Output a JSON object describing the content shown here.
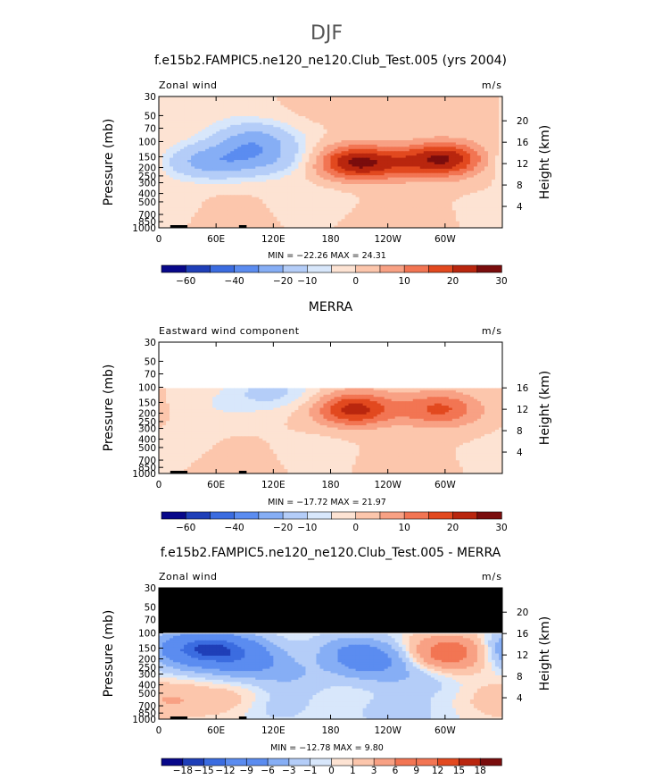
{
  "page_title": "DJF",
  "colors": {
    "palette": [
      "#08088a",
      "#1f3fb8",
      "#3b6ce0",
      "#5b8cf0",
      "#86aef5",
      "#b4cdf8",
      "#d8e7fb",
      "#fde3d3",
      "#fcc6ac",
      "#f8a184",
      "#f27553",
      "#e2491f",
      "#b9260e",
      "#7a0d0d"
    ],
    "diff_palette": [
      "#08088a",
      "#1f3fb8",
      "#3b6ce0",
      "#5b8cf0",
      "#86aef5",
      "#b4cdf8",
      "#d8e7fb",
      "#fde3d3",
      "#fcc6ac",
      "#f8a184",
      "#f27553",
      "#e2491f",
      "#b9260e",
      "#7a0d0d"
    ],
    "missing": "#000000"
  },
  "chart_data": [
    {
      "type": "heatmap",
      "title": "f.e15b2.FAMPIC5.ne120_ne120.Club_Test.005 (yrs 2004)",
      "left_string": "Zonal wind",
      "right_string": "m/s",
      "ylabel": "Pressure (mb)",
      "right_label": "Height (km)",
      "x_tick_labels": [
        "0",
        "60E",
        "120E",
        "180",
        "120W",
        "60W"
      ],
      "x_ticks_deg": [
        0,
        60,
        120,
        180,
        240,
        300
      ],
      "xlim": [
        0,
        360
      ],
      "p_ticks": [
        "30",
        "50",
        "70",
        "100",
        "150",
        "200",
        "250",
        "300",
        "400",
        "500",
        "700",
        "850",
        "1000"
      ],
      "z_ticks": [
        "4",
        "8",
        "12",
        "16",
        "20"
      ],
      "plim": [
        30,
        1000
      ],
      "top_pressure": 30,
      "min_max": "MIN = −22.26   MAX =  24.31",
      "colorbar_labels": [
        "−60",
        "−40",
        "−20",
        "−10",
        "0",
        "10",
        "20",
        "30"
      ],
      "colorbar_boundaries": [
        -70,
        -60,
        -50,
        -40,
        -30,
        -20,
        -10,
        -5,
        0,
        5,
        10,
        15,
        20,
        25,
        30
      ],
      "features": [
        {
          "lon": 100,
          "p": 95,
          "value": -22
        },
        {
          "lon": 40,
          "p": 170,
          "value": -14
        },
        {
          "lon": 70,
          "p": 170,
          "value": -14
        },
        {
          "lon": 115,
          "p": 160,
          "value": -14
        },
        {
          "lon": 205,
          "p": 175,
          "value": 24
        },
        {
          "lon": 300,
          "p": 160,
          "value": 24
        },
        {
          "lon": 250,
          "p": 180,
          "value": 8
        },
        {
          "lon": 160,
          "p": 500,
          "value": -4
        },
        {
          "lon": 20,
          "p": 600,
          "value": -3
        },
        {
          "lon": 70,
          "p": 700,
          "value": 4
        },
        {
          "lon": 240,
          "p": 750,
          "value": 3
        },
        {
          "lon": 180,
          "p": 40,
          "value": 2
        },
        {
          "lon": 300,
          "p": 40,
          "value": 2
        },
        {
          "lon": 60,
          "p": 40,
          "value": -3
        }
      ]
    },
    {
      "type": "heatmap",
      "title": "MERRA",
      "left_string": "Eastward wind component",
      "right_string": "m/s",
      "ylabel": "Pressure (mb)",
      "right_label": "Height (km)",
      "x_tick_labels": [
        "0",
        "60E",
        "120E",
        "180",
        "120W",
        "60W"
      ],
      "x_ticks_deg": [
        0,
        60,
        120,
        180,
        240,
        300
      ],
      "xlim": [
        0,
        360
      ],
      "p_ticks": [
        "30",
        "50",
        "70",
        "100",
        "150",
        "200",
        "250",
        "300",
        "400",
        "500",
        "700",
        "850",
        "1000"
      ],
      "z_ticks": [
        "4",
        "8",
        "12",
        "16"
      ],
      "plim": [
        30,
        1000
      ],
      "top_pressure": 100,
      "min_max": "MIN = −17.72   MAX =  21.97",
      "colorbar_labels": [
        "−60",
        "−40",
        "−20",
        "−10",
        "0",
        "10",
        "20",
        "30"
      ],
      "colorbar_boundaries": [
        -70,
        -60,
        -50,
        -40,
        -30,
        -20,
        -10,
        -5,
        0,
        5,
        10,
        15,
        20,
        25,
        30
      ],
      "features": [
        {
          "lon": 120,
          "p": 110,
          "value": -12
        },
        {
          "lon": 70,
          "p": 160,
          "value": -5
        },
        {
          "lon": 205,
          "p": 180,
          "value": 22
        },
        {
          "lon": 295,
          "p": 180,
          "value": 16
        },
        {
          "lon": 160,
          "p": 600,
          "value": -4
        },
        {
          "lon": 90,
          "p": 750,
          "value": 4
        },
        {
          "lon": 240,
          "p": 700,
          "value": 2
        },
        {
          "lon": 20,
          "p": 500,
          "value": -2
        }
      ]
    },
    {
      "type": "heatmap",
      "title": "f.e15b2.FAMPIC5.ne120_ne120.Club_Test.005 - MERRA",
      "left_string": "Zonal wind",
      "right_string": "m/s",
      "ylabel": "Pressure (mb)",
      "right_label": "Height (km)",
      "x_tick_labels": [
        "0",
        "60E",
        "120E",
        "180",
        "120W",
        "60W"
      ],
      "x_ticks_deg": [
        0,
        60,
        120,
        180,
        240,
        300
      ],
      "xlim": [
        0,
        360
      ],
      "p_ticks": [
        "30",
        "50",
        "70",
        "100",
        "150",
        "200",
        "250",
        "300",
        "400",
        "500",
        "700",
        "850",
        "1000"
      ],
      "z_ticks": [
        "4",
        "8",
        "12",
        "16",
        "20"
      ],
      "plim": [
        30,
        1000
      ],
      "top_pressure": 100,
      "missing_above": true,
      "min_max": "MIN = −12.78   MAX =   9.80",
      "colorbar_labels": [
        "−18",
        "−15",
        "−12",
        "−9",
        "−6",
        "−3",
        "−1",
        "0",
        "1",
        "3",
        "6",
        "9",
        "12",
        "15",
        "18"
      ],
      "colorbar_boundaries": [
        -21,
        -18,
        -15,
        -12,
        -9,
        -6,
        -3,
        -1,
        0,
        1,
        3,
        6,
        9,
        12,
        15,
        18,
        21
      ],
      "features": [
        {
          "lon": 55,
          "p": 150,
          "value": -12
        },
        {
          "lon": 90,
          "p": 200,
          "value": -7
        },
        {
          "lon": 15,
          "p": 160,
          "value": -5
        },
        {
          "lon": 200,
          "p": 170,
          "value": -6
        },
        {
          "lon": 225,
          "p": 220,
          "value": -6
        },
        {
          "lon": 140,
          "p": 300,
          "value": -3
        },
        {
          "lon": 305,
          "p": 170,
          "value": 9
        },
        {
          "lon": 10,
          "p": 600,
          "value": 3
        },
        {
          "lon": 80,
          "p": 600,
          "value": 2
        },
        {
          "lon": 175,
          "p": 200,
          "value": 2
        },
        {
          "lon": 270,
          "p": 350,
          "value": -2
        },
        {
          "lon": 120,
          "p": 700,
          "value": -2
        },
        {
          "lon": 250,
          "p": 850,
          "value": -2
        }
      ]
    }
  ]
}
